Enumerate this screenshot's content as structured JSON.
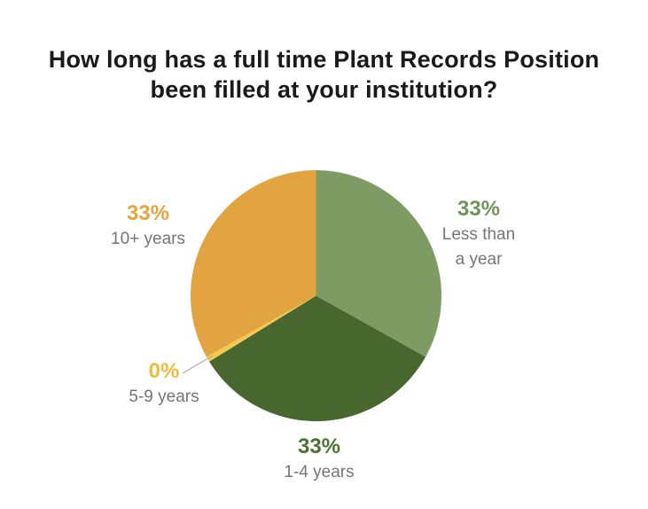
{
  "title": "How long has a full time Plant Records Position\nbeen filled at your institution?",
  "chart_data": {
    "type": "pie",
    "title": "How long has a full time Plant Records Position been filled at your institution?",
    "categories": [
      "Less than a year",
      "1-4 years",
      "5-9 years",
      "10+ years"
    ],
    "values": [
      33,
      33,
      0,
      33
    ],
    "unit": "%",
    "slice_colors": [
      "#7E9B64",
      "#47672F",
      "#F3C94F",
      "#E2A440"
    ],
    "start_angle_deg": 0,
    "direction": "clockwise",
    "zero_slice_min_angle_deg": 2.5,
    "legend_position": "none",
    "labels_outside": true,
    "labels": [
      {
        "pct": "33%",
        "category": "Less than\na year",
        "color": "#71945A"
      },
      {
        "pct": "33%",
        "category": "1-4 years",
        "color": "#4D7331"
      },
      {
        "pct": "0%",
        "category": "5-9 years",
        "color": "#EFBD3E"
      },
      {
        "pct": "33%",
        "category": "10+ years",
        "color": "#E5A43C"
      }
    ],
    "category_text_color": "#757575",
    "leader_line_color": "#ADADAD"
  }
}
